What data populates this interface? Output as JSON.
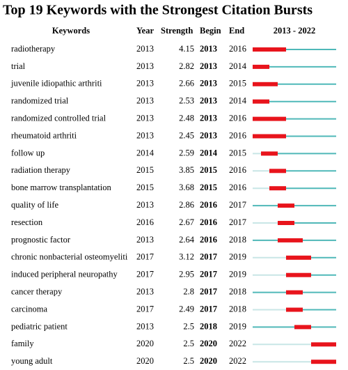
{
  "title": "Top 19 Keywords with the Strongest Citation Bursts",
  "columns": [
    "Keywords",
    "Year",
    "Strength",
    "Begin",
    "End"
  ],
  "timeline": {
    "label": "2013 - 2022",
    "start": 2013,
    "end": 2022
  },
  "rows": [
    [
      "radiotherapy",
      2013,
      4.15,
      2013,
      2016
    ],
    [
      "trial",
      2013,
      2.82,
      2013,
      2014
    ],
    [
      "juvenile idiopathic arthriti",
      2013,
      2.66,
      2013,
      2015
    ],
    [
      "randomized trial",
      2013,
      2.53,
      2013,
      2014
    ],
    [
      "randomized controlled trial",
      2013,
      2.48,
      2013,
      2016
    ],
    [
      "rheumatoid arthriti",
      2013,
      2.45,
      2013,
      2016
    ],
    [
      "follow up",
      2014,
      2.59,
      2014,
      2015
    ],
    [
      "radiation therapy",
      2015,
      3.85,
      2015,
      2016
    ],
    [
      "bone marrow transplantation",
      2015,
      3.68,
      2015,
      2016
    ],
    [
      "quality of life",
      2013,
      2.86,
      2016,
      2017
    ],
    [
      "resection",
      2016,
      2.67,
      2016,
      2017
    ],
    [
      "prognostic factor",
      2013,
      2.64,
      2016,
      2018
    ],
    [
      "chronic nonbacterial osteomyeliti",
      2017,
      3.12,
      2017,
      2019
    ],
    [
      "induced peripheral neuropathy",
      2017,
      2.95,
      2017,
      2019
    ],
    [
      "cancer therapy",
      2013,
      2.8,
      2017,
      2018
    ],
    [
      "carcinoma",
      2017,
      2.49,
      2017,
      2018
    ],
    [
      "pediatric patient",
      2013,
      2.5,
      2018,
      2019
    ],
    [
      "family",
      2020,
      2.5,
      2020,
      2022
    ],
    [
      "young adult",
      2020,
      2.5,
      2020,
      2022
    ]
  ]
}
